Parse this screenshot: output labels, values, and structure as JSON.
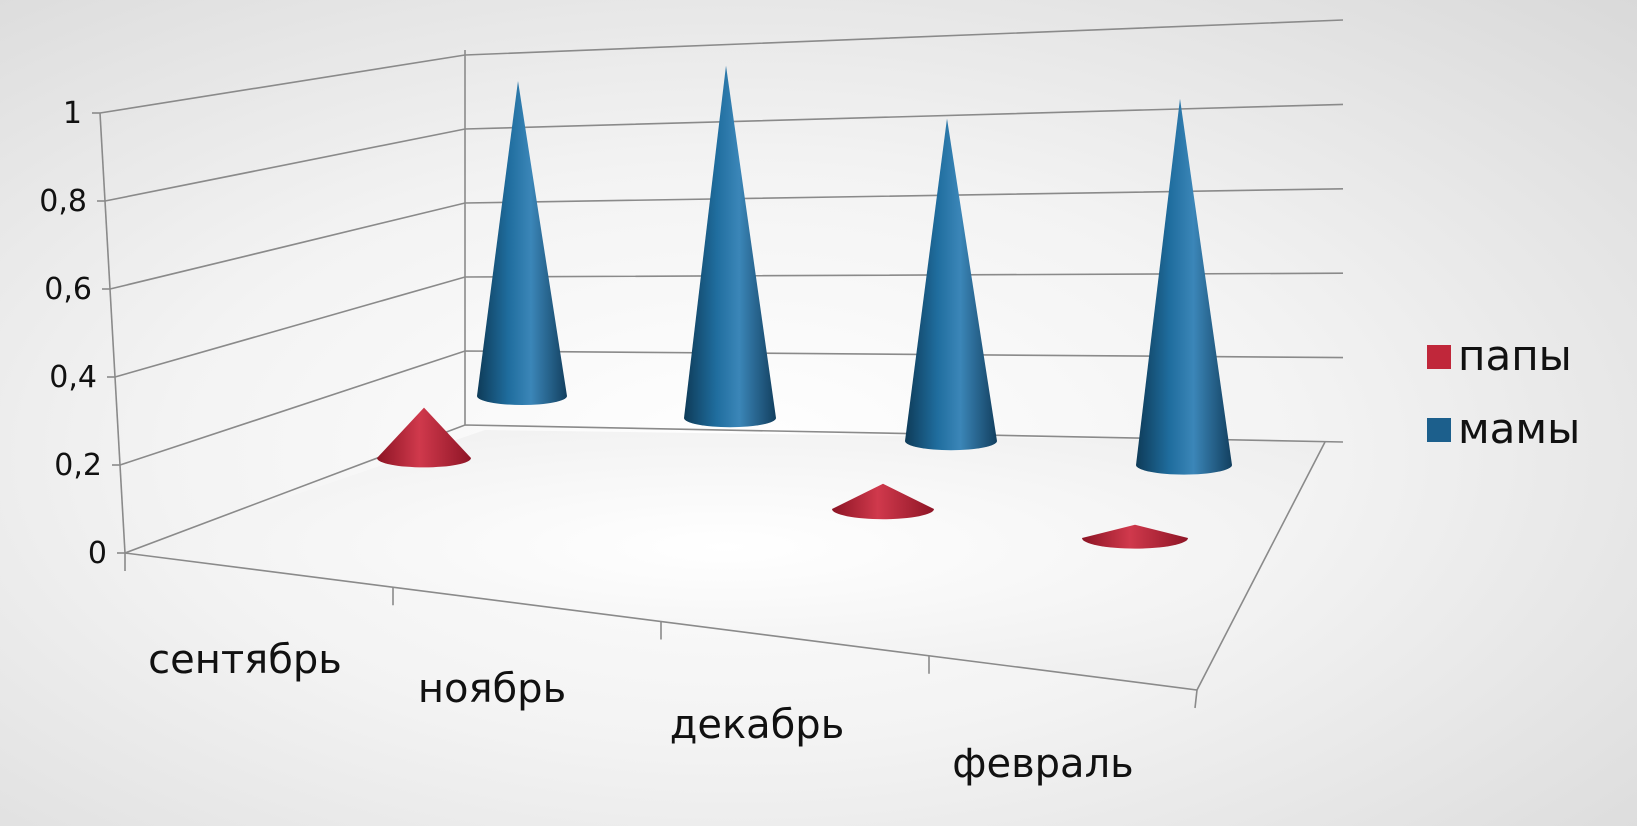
{
  "chart_data": {
    "type": "bar",
    "subtype": "3d-cone",
    "categories": [
      "сентябрь",
      "ноябрь",
      "декабрь",
      "февраль"
    ],
    "series": [
      {
        "name": "папы",
        "values": [
          0.12,
          0,
          0.06,
          0.03
        ],
        "color": "#c0273a"
      },
      {
        "name": "мамы",
        "values": [
          0.75,
          0.81,
          0.75,
          0.84
        ],
        "color": "#1c5f8c"
      }
    ],
    "y_ticks": [
      "0",
      "0,2",
      "0,4",
      "0,6",
      "0,8",
      "1"
    ],
    "ylim": [
      0,
      1
    ],
    "title": "",
    "xlabel": "",
    "ylabel": "",
    "grid": true,
    "legend_position": "right"
  }
}
